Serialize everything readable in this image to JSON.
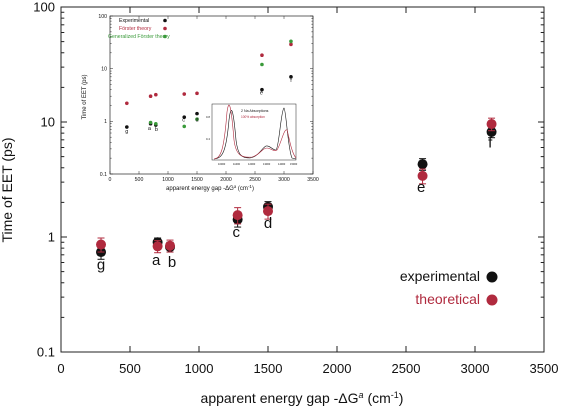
{
  "chart_data": [
    {
      "type": "scatter",
      "xlabel": "apparent energy gap -ΔG",
      "xlabel_sup": "a",
      "xlabel_unit_pre": " (cm",
      "xlabel_unit_sup": "-1",
      "xlabel_unit_post": ")",
      "ylabel": "Time of EET (ps)",
      "xlim": [
        0,
        3500
      ],
      "ylim": [
        0.1,
        100
      ],
      "yscale": "log",
      "x_ticks": [
        "0",
        "500",
        "1000",
        "1500",
        "2000",
        "2500",
        "3000",
        "3500"
      ],
      "y_ticks": [
        "0.1",
        "1",
        "10",
        "100"
      ],
      "grid": false,
      "legend_position": "bottom-right",
      "series": [
        {
          "name": "experimental",
          "color": "#111111",
          "points": [
            {
              "x": 290,
              "y": 0.74,
              "err": 0.1
            },
            {
              "x": 700,
              "y": 0.9,
              "err": 0.08
            },
            {
              "x": 790,
              "y": 0.82,
              "err": 0.08
            },
            {
              "x": 1280,
              "y": 1.42,
              "err": 0.2
            },
            {
              "x": 1500,
              "y": 1.83,
              "err": 0.2
            },
            {
              "x": 2620,
              "y": 4.3,
              "err": 0.5
            },
            {
              "x": 3120,
              "y": 8.2,
              "err": 0.9
            }
          ]
        },
        {
          "name": "theoretical",
          "color": "#b02a3e",
          "points": [
            {
              "x": 290,
              "y": 0.86,
              "err": 0.12
            },
            {
              "x": 700,
              "y": 0.83,
              "err": 0.1
            },
            {
              "x": 790,
              "y": 0.84,
              "err": 0.1
            },
            {
              "x": 1280,
              "y": 1.55,
              "err": 0.25
            },
            {
              "x": 1500,
              "y": 1.68,
              "err": 0.25
            },
            {
              "x": 2620,
              "y": 3.4,
              "err": 0.5
            },
            {
              "x": 3120,
              "y": 9.6,
              "err": 1.2
            }
          ]
        }
      ],
      "point_labels": [
        {
          "text": "g",
          "x": 290,
          "y": 0.52
        },
        {
          "text": "a",
          "x": 690,
          "y": 0.57
        },
        {
          "text": "b",
          "x": 805,
          "y": 0.55
        },
        {
          "text": "c",
          "x": 1270,
          "y": 1.0
        },
        {
          "text": "d",
          "x": 1500,
          "y": 1.2
        },
        {
          "text": "e",
          "x": 2610,
          "y": 2.45
        },
        {
          "text": "f",
          "x": 3110,
          "y": 6.0
        }
      ]
    },
    {
      "type": "scatter",
      "xlabel": "apparent energy gap -ΔG",
      "xlabel_sup": "a",
      "xlabel_unit_pre": " (cm",
      "xlabel_unit_sup": "-1",
      "xlabel_unit_post": ")",
      "ylabel": "Time of EET (ps)",
      "xlim": [
        0,
        3500
      ],
      "ylim": [
        0.1,
        100
      ],
      "yscale": "log",
      "x_ticks": [
        "0",
        "500",
        "1000",
        "1500",
        "2000",
        "2500",
        "3000",
        "3500"
      ],
      "y_ticks": [
        "0.1",
        "1",
        "10",
        "100"
      ],
      "grid": false,
      "legend_position": "top-left",
      "series": [
        {
          "name": "Experimental",
          "color": "#111111",
          "points": [
            {
              "x": 290,
              "y": 0.78
            },
            {
              "x": 700,
              "y": 0.9
            },
            {
              "x": 790,
              "y": 0.85
            },
            {
              "x": 1280,
              "y": 1.2
            },
            {
              "x": 1500,
              "y": 1.4
            },
            {
              "x": 2620,
              "y": 4.0
            },
            {
              "x": 3120,
              "y": 7.0
            }
          ]
        },
        {
          "name": "Förster theory",
          "color": "#b02a3e",
          "points": [
            {
              "x": 290,
              "y": 2.2
            },
            {
              "x": 700,
              "y": 3.0
            },
            {
              "x": 790,
              "y": 3.2
            },
            {
              "x": 1280,
              "y": 3.3
            },
            {
              "x": 1500,
              "y": 3.4
            },
            {
              "x": 2620,
              "y": 18.0
            },
            {
              "x": 3120,
              "y": 29.0
            }
          ]
        },
        {
          "name": "Generalized Förster theory",
          "color": "#3a9a3a",
          "points": [
            {
              "x": 700,
              "y": 0.95
            },
            {
              "x": 790,
              "y": 0.9
            },
            {
              "x": 1280,
              "y": 0.8
            },
            {
              "x": 1500,
              "y": 1.1
            },
            {
              "x": 2620,
              "y": 12.0
            },
            {
              "x": 3120,
              "y": 33.0
            }
          ]
        }
      ],
      "point_labels": [
        {
          "text": "g",
          "x": 290,
          "y": 0.6
        },
        {
          "text": "a",
          "x": 680,
          "y": 0.68
        },
        {
          "text": "b",
          "x": 800,
          "y": 0.66
        },
        {
          "text": "c",
          "x": 1270,
          "y": 1.0
        },
        {
          "text": "d",
          "x": 1500,
          "y": 1.0
        },
        {
          "text": "e",
          "x": 2610,
          "y": 3.2
        },
        {
          "text": "f",
          "x": 3120,
          "y": 5.6
        }
      ]
    }
  ],
  "spectrum_inset": {
    "title": "2 Na Absorptions",
    "caption": "100% absorption",
    "x_tick_labels": [
      "10000",
      "11000",
      "12000",
      "13000",
      "14000",
      "15000"
    ],
    "y_tick_labels": [
      "0.4",
      "0.8"
    ],
    "colors": {
      "black": "#111111",
      "red": "#b02a3e"
    }
  }
}
